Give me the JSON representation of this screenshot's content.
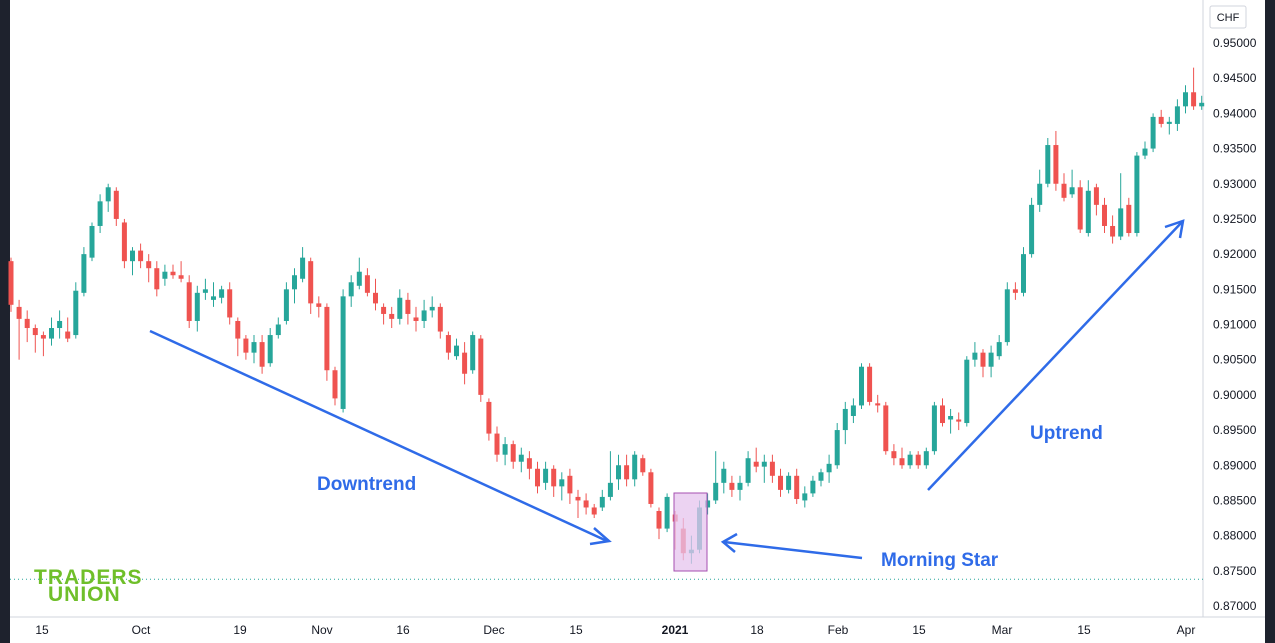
{
  "colors": {
    "up": "#26a69a",
    "down": "#ef5350",
    "arrow": "#2f6be8",
    "highlight_fill": "#e5c4ee",
    "highlight_stroke": "#a64fb0",
    "logo": "#6fbf2a"
  },
  "logo": {
    "line1": "TRADERS",
    "line2": "UNION"
  },
  "currency": "CHF",
  "annotations": {
    "downtrend": "Downtrend",
    "uptrend": "Uptrend",
    "pattern": "Morning Star"
  },
  "chart_data": {
    "type": "candlestick",
    "ylim": [
      0.8695,
      0.9525
    ],
    "y_ticks": [
      "0.87000",
      "0.87500",
      "0.88000",
      "0.88500",
      "0.89000",
      "0.89500",
      "0.90000",
      "0.90500",
      "0.91000",
      "0.91500",
      "0.92000",
      "0.92500",
      "0.93000",
      "0.93500",
      "0.94000",
      "0.94500",
      "0.95000"
    ],
    "x_ticks": [
      "15",
      "Oct",
      "19",
      "Nov",
      "16",
      "Dec",
      "15",
      "2021",
      "18",
      "Feb",
      "15",
      "Mar",
      "15",
      "Apr"
    ],
    "reference_line": 0.8738,
    "candles": [
      [
        0.919,
        0.9195,
        0.9118,
        0.9128
      ],
      [
        0.9125,
        0.9135,
        0.905,
        0.9108
      ],
      [
        0.9108,
        0.912,
        0.9075,
        0.9095
      ],
      [
        0.9095,
        0.91,
        0.906,
        0.9085
      ],
      [
        0.9085,
        0.909,
        0.9055,
        0.908
      ],
      [
        0.908,
        0.911,
        0.907,
        0.9095
      ],
      [
        0.9095,
        0.912,
        0.908,
        0.9105
      ],
      [
        0.909,
        0.911,
        0.9075,
        0.908
      ],
      [
        0.9085,
        0.916,
        0.908,
        0.9148
      ],
      [
        0.9145,
        0.921,
        0.914,
        0.92
      ],
      [
        0.9195,
        0.9245,
        0.919,
        0.924
      ],
      [
        0.924,
        0.9285,
        0.923,
        0.9275
      ],
      [
        0.9275,
        0.93,
        0.926,
        0.9295
      ],
      [
        0.929,
        0.9295,
        0.924,
        0.925
      ],
      [
        0.9245,
        0.925,
        0.918,
        0.919
      ],
      [
        0.919,
        0.921,
        0.917,
        0.9205
      ],
      [
        0.9205,
        0.9215,
        0.918,
        0.919
      ],
      [
        0.919,
        0.92,
        0.916,
        0.918
      ],
      [
        0.918,
        0.919,
        0.914,
        0.915
      ],
      [
        0.9165,
        0.9185,
        0.9155,
        0.9175
      ],
      [
        0.9175,
        0.9185,
        0.9165,
        0.917
      ],
      [
        0.917,
        0.919,
        0.916,
        0.9165
      ],
      [
        0.916,
        0.917,
        0.9095,
        0.9105
      ],
      [
        0.9105,
        0.9155,
        0.909,
        0.9145
      ],
      [
        0.9145,
        0.9165,
        0.9135,
        0.915
      ],
      [
        0.9135,
        0.916,
        0.9125,
        0.914
      ],
      [
        0.9138,
        0.9155,
        0.913,
        0.915
      ],
      [
        0.915,
        0.916,
        0.91,
        0.911
      ],
      [
        0.9105,
        0.911,
        0.9055,
        0.908
      ],
      [
        0.908,
        0.9085,
        0.905,
        0.906
      ],
      [
        0.906,
        0.9085,
        0.9045,
        0.9075
      ],
      [
        0.9075,
        0.9085,
        0.903,
        0.904
      ],
      [
        0.9045,
        0.9095,
        0.904,
        0.9085
      ],
      [
        0.9085,
        0.911,
        0.908,
        0.91
      ],
      [
        0.9105,
        0.916,
        0.91,
        0.915
      ],
      [
        0.915,
        0.918,
        0.913,
        0.917
      ],
      [
        0.9165,
        0.921,
        0.916,
        0.9195
      ],
      [
        0.919,
        0.9195,
        0.9115,
        0.913
      ],
      [
        0.913,
        0.914,
        0.911,
        0.9125
      ],
      [
        0.9125,
        0.913,
        0.902,
        0.9035
      ],
      [
        0.9035,
        0.904,
        0.8985,
        0.8995
      ],
      [
        0.898,
        0.915,
        0.8975,
        0.914
      ],
      [
        0.914,
        0.917,
        0.9125,
        0.916
      ],
      [
        0.9155,
        0.9195,
        0.915,
        0.9175
      ],
      [
        0.917,
        0.918,
        0.914,
        0.9145
      ],
      [
        0.9145,
        0.9165,
        0.912,
        0.913
      ],
      [
        0.9125,
        0.913,
        0.91,
        0.9115
      ],
      [
        0.9115,
        0.9125,
        0.9095,
        0.9108
      ],
      [
        0.9108,
        0.915,
        0.91,
        0.9138
      ],
      [
        0.9135,
        0.9145,
        0.91,
        0.9115
      ],
      [
        0.911,
        0.9125,
        0.909,
        0.9105
      ],
      [
        0.9105,
        0.9135,
        0.9095,
        0.912
      ],
      [
        0.912,
        0.914,
        0.911,
        0.9125
      ],
      [
        0.9125,
        0.913,
        0.908,
        0.909
      ],
      [
        0.9085,
        0.909,
        0.905,
        0.906
      ],
      [
        0.9055,
        0.908,
        0.905,
        0.907
      ],
      [
        0.906,
        0.9075,
        0.9015,
        0.903
      ],
      [
        0.9035,
        0.909,
        0.903,
        0.9085
      ],
      [
        0.908,
        0.9085,
        0.899,
        0.9
      ],
      [
        0.899,
        0.8995,
        0.8935,
        0.8945
      ],
      [
        0.8945,
        0.8955,
        0.8905,
        0.8915
      ],
      [
        0.8915,
        0.894,
        0.89,
        0.893
      ],
      [
        0.893,
        0.8935,
        0.8895,
        0.8905
      ],
      [
        0.8905,
        0.8925,
        0.889,
        0.8915
      ],
      [
        0.891,
        0.892,
        0.888,
        0.8895
      ],
      [
        0.8895,
        0.8905,
        0.886,
        0.887
      ],
      [
        0.8875,
        0.8905,
        0.8865,
        0.8895
      ],
      [
        0.8895,
        0.89,
        0.8855,
        0.887
      ],
      [
        0.887,
        0.889,
        0.885,
        0.888
      ],
      [
        0.8885,
        0.8895,
        0.8845,
        0.886
      ],
      [
        0.8855,
        0.8865,
        0.8825,
        0.885
      ],
      [
        0.885,
        0.886,
        0.883,
        0.884
      ],
      [
        0.884,
        0.8845,
        0.8825,
        0.883
      ],
      [
        0.884,
        0.8865,
        0.8835,
        0.8855
      ],
      [
        0.8855,
        0.892,
        0.885,
        0.8875
      ],
      [
        0.888,
        0.8915,
        0.8865,
        0.89
      ],
      [
        0.89,
        0.8915,
        0.887,
        0.888
      ],
      [
        0.888,
        0.892,
        0.887,
        0.8915
      ],
      [
        0.891,
        0.8915,
        0.8885,
        0.889
      ],
      [
        0.889,
        0.8895,
        0.884,
        0.8845
      ],
      [
        0.8835,
        0.884,
        0.8795,
        0.881
      ],
      [
        0.881,
        0.886,
        0.8805,
        0.8855
      ],
      [
        0.883,
        0.8835,
        0.878,
        0.882
      ],
      [
        0.881,
        0.8825,
        0.8765,
        0.8775
      ],
      [
        0.8775,
        0.88,
        0.876,
        0.878
      ],
      [
        0.878,
        0.885,
        0.8775,
        0.884
      ],
      [
        0.884,
        0.886,
        0.883,
        0.885
      ],
      [
        0.885,
        0.892,
        0.8845,
        0.8875
      ],
      [
        0.8875,
        0.8905,
        0.886,
        0.8895
      ],
      [
        0.8875,
        0.8885,
        0.8855,
        0.8865
      ],
      [
        0.8865,
        0.8885,
        0.885,
        0.8875
      ],
      [
        0.8875,
        0.892,
        0.887,
        0.891
      ],
      [
        0.8905,
        0.8925,
        0.889,
        0.8898
      ],
      [
        0.8898,
        0.8915,
        0.8875,
        0.8905
      ],
      [
        0.8905,
        0.8915,
        0.8875,
        0.8885
      ],
      [
        0.8885,
        0.8895,
        0.8855,
        0.8865
      ],
      [
        0.8865,
        0.889,
        0.886,
        0.8885
      ],
      [
        0.8885,
        0.8895,
        0.8845,
        0.8852
      ],
      [
        0.885,
        0.887,
        0.884,
        0.886
      ],
      [
        0.886,
        0.8885,
        0.8855,
        0.8878
      ],
      [
        0.8878,
        0.8895,
        0.887,
        0.889
      ],
      [
        0.889,
        0.8915,
        0.8875,
        0.8902
      ],
      [
        0.89,
        0.896,
        0.8895,
        0.895
      ],
      [
        0.895,
        0.899,
        0.893,
        0.898
      ],
      [
        0.897,
        0.8995,
        0.896,
        0.8985
      ],
      [
        0.8985,
        0.9045,
        0.898,
        0.904
      ],
      [
        0.904,
        0.9045,
        0.8985,
        0.899
      ],
      [
        0.8988,
        0.9,
        0.8975,
        0.8985
      ],
      [
        0.8985,
        0.899,
        0.8915,
        0.892
      ],
      [
        0.892,
        0.893,
        0.89,
        0.891
      ],
      [
        0.891,
        0.8925,
        0.8895,
        0.89
      ],
      [
        0.89,
        0.892,
        0.8895,
        0.8915
      ],
      [
        0.8915,
        0.892,
        0.8895,
        0.89
      ],
      [
        0.89,
        0.8925,
        0.8895,
        0.892
      ],
      [
        0.892,
        0.899,
        0.8915,
        0.8985
      ],
      [
        0.8985,
        0.8995,
        0.8955,
        0.896
      ],
      [
        0.8965,
        0.898,
        0.8945,
        0.897
      ],
      [
        0.8965,
        0.8975,
        0.895,
        0.8962
      ],
      [
        0.896,
        0.9055,
        0.8955,
        0.905
      ],
      [
        0.905,
        0.9075,
        0.904,
        0.906
      ],
      [
        0.906,
        0.9065,
        0.9025,
        0.904
      ],
      [
        0.904,
        0.907,
        0.9025,
        0.906
      ],
      [
        0.9055,
        0.9085,
        0.905,
        0.9075
      ],
      [
        0.9075,
        0.916,
        0.907,
        0.915
      ],
      [
        0.915,
        0.916,
        0.9135,
        0.9145
      ],
      [
        0.9145,
        0.921,
        0.914,
        0.92
      ],
      [
        0.92,
        0.928,
        0.9195,
        0.927
      ],
      [
        0.927,
        0.932,
        0.926,
        0.93
      ],
      [
        0.93,
        0.9365,
        0.9295,
        0.9355
      ],
      [
        0.9355,
        0.9375,
        0.929,
        0.93
      ],
      [
        0.93,
        0.9315,
        0.9275,
        0.928
      ],
      [
        0.9285,
        0.932,
        0.928,
        0.9295
      ],
      [
        0.9295,
        0.9305,
        0.923,
        0.9235
      ],
      [
        0.923,
        0.9305,
        0.9225,
        0.929
      ],
      [
        0.9295,
        0.93,
        0.9255,
        0.927
      ],
      [
        0.927,
        0.928,
        0.923,
        0.924
      ],
      [
        0.924,
        0.9255,
        0.9215,
        0.9225
      ],
      [
        0.9225,
        0.9315,
        0.922,
        0.9265
      ],
      [
        0.927,
        0.928,
        0.9225,
        0.923
      ],
      [
        0.923,
        0.9345,
        0.9225,
        0.934
      ],
      [
        0.934,
        0.936,
        0.9335,
        0.935
      ],
      [
        0.935,
        0.94,
        0.9345,
        0.9395
      ],
      [
        0.9395,
        0.9405,
        0.938,
        0.9385
      ],
      [
        0.9385,
        0.9395,
        0.937,
        0.9388
      ],
      [
        0.9385,
        0.942,
        0.9375,
        0.941
      ],
      [
        0.941,
        0.944,
        0.94,
        0.943
      ],
      [
        0.943,
        0.9465,
        0.9405,
        0.941
      ],
      [
        0.941,
        0.9425,
        0.9405,
        0.9415
      ]
    ]
  }
}
